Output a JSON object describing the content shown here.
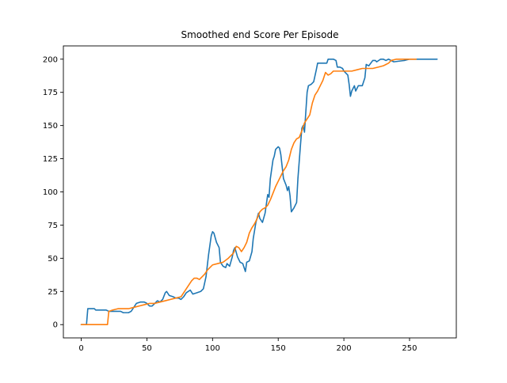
{
  "chart_data": {
    "type": "line",
    "title": "Smoothed end Score Per Episode",
    "xlabel": "",
    "ylabel": "",
    "xlim": [
      -13.6,
      285.6
    ],
    "ylim": [
      -10,
      210
    ],
    "xticks": [
      0,
      50,
      100,
      150,
      200,
      250
    ],
    "yticks": [
      0,
      25,
      50,
      75,
      100,
      125,
      150,
      175,
      200
    ],
    "grid": false,
    "series": [
      {
        "color": "#1f77b4",
        "points": [
          [
            0,
            0
          ],
          [
            4,
            0
          ],
          [
            5,
            12
          ],
          [
            8,
            12
          ],
          [
            10,
            12
          ],
          [
            11,
            11
          ],
          [
            14,
            11
          ],
          [
            16,
            11
          ],
          [
            19,
            11
          ],
          [
            21,
            10
          ],
          [
            25,
            10
          ],
          [
            30,
            10
          ],
          [
            32,
            9
          ],
          [
            36,
            9
          ],
          [
            38,
            10
          ],
          [
            40,
            13
          ],
          [
            42,
            16
          ],
          [
            45,
            17
          ],
          [
            48,
            17
          ],
          [
            50,
            16
          ],
          [
            52,
            14
          ],
          [
            54,
            14
          ],
          [
            56,
            16
          ],
          [
            58,
            18
          ],
          [
            60,
            17
          ],
          [
            62,
            19
          ],
          [
            64,
            24
          ],
          [
            65,
            25
          ],
          [
            67,
            22
          ],
          [
            70,
            21
          ],
          [
            72,
            20
          ],
          [
            74,
            20
          ],
          [
            76,
            19
          ],
          [
            78,
            21
          ],
          [
            80,
            24
          ],
          [
            83,
            26
          ],
          [
            85,
            23
          ],
          [
            88,
            24
          ],
          [
            91,
            25
          ],
          [
            93,
            27
          ],
          [
            95,
            36
          ],
          [
            97,
            53
          ],
          [
            99,
            67
          ],
          [
            100,
            70
          ],
          [
            101,
            69
          ],
          [
            103,
            62
          ],
          [
            105,
            58
          ],
          [
            106,
            47
          ],
          [
            108,
            44
          ],
          [
            110,
            43
          ],
          [
            111,
            46
          ],
          [
            113,
            44
          ],
          [
            115,
            51
          ],
          [
            116,
            56
          ],
          [
            117,
            58
          ],
          [
            119,
            51
          ],
          [
            121,
            47
          ],
          [
            123,
            46
          ],
          [
            125,
            40
          ],
          [
            126,
            47
          ],
          [
            128,
            48
          ],
          [
            130,
            55
          ],
          [
            131,
            65
          ],
          [
            133,
            77
          ],
          [
            135,
            84
          ],
          [
            136,
            80
          ],
          [
            138,
            77
          ],
          [
            140,
            84
          ],
          [
            141,
            91
          ],
          [
            142,
            98
          ],
          [
            143,
            96
          ],
          [
            144,
            110
          ],
          [
            146,
            124
          ],
          [
            147,
            127
          ],
          [
            148,
            132
          ],
          [
            150,
            134
          ],
          [
            151,
            133
          ],
          [
            152,
            128
          ],
          [
            154,
            110
          ],
          [
            156,
            105
          ],
          [
            157,
            101
          ],
          [
            158,
            104
          ],
          [
            159,
            97
          ],
          [
            160,
            85
          ],
          [
            162,
            88
          ],
          [
            164,
            92
          ],
          [
            165,
            110
          ],
          [
            167,
            136
          ],
          [
            168,
            148
          ],
          [
            169,
            150
          ],
          [
            170,
            145
          ],
          [
            171,
            160
          ],
          [
            172,
            175
          ],
          [
            173,
            180
          ],
          [
            175,
            181
          ],
          [
            177,
            183
          ],
          [
            179,
            192
          ],
          [
            180,
            197
          ],
          [
            183,
            197
          ],
          [
            186,
            197
          ],
          [
            187,
            197
          ],
          [
            188,
            200
          ],
          [
            192,
            200
          ],
          [
            194,
            199
          ],
          [
            195,
            194
          ],
          [
            197,
            194
          ],
          [
            199,
            193
          ],
          [
            200,
            191
          ],
          [
            203,
            188
          ],
          [
            204,
            181
          ],
          [
            205,
            172
          ],
          [
            206,
            176
          ],
          [
            208,
            180
          ],
          [
            209,
            176
          ],
          [
            211,
            180
          ],
          [
            214,
            180
          ],
          [
            216,
            186
          ],
          [
            217,
            196
          ],
          [
            219,
            195
          ],
          [
            222,
            199
          ],
          [
            224,
            199
          ],
          [
            225,
            198
          ],
          [
            228,
            200
          ],
          [
            230,
            200
          ],
          [
            232,
            199
          ],
          [
            234,
            200
          ],
          [
            238,
            198
          ],
          [
            246,
            199
          ],
          [
            250,
            200
          ],
          [
            255,
            200
          ],
          [
            271,
            200
          ]
        ]
      },
      {
        "color": "#ff7f0e",
        "points": [
          [
            0,
            0
          ],
          [
            10,
            0
          ],
          [
            20,
            0
          ],
          [
            21,
            10
          ],
          [
            24,
            11
          ],
          [
            28,
            12
          ],
          [
            32,
            12
          ],
          [
            36,
            12
          ],
          [
            40,
            13
          ],
          [
            44,
            14
          ],
          [
            48,
            15
          ],
          [
            52,
            16
          ],
          [
            56,
            16
          ],
          [
            60,
            17
          ],
          [
            64,
            18
          ],
          [
            68,
            19
          ],
          [
            72,
            20
          ],
          [
            76,
            21
          ],
          [
            80,
            27
          ],
          [
            84,
            33
          ],
          [
            86,
            35
          ],
          [
            88,
            35
          ],
          [
            90,
            34
          ],
          [
            92,
            36
          ],
          [
            94,
            38
          ],
          [
            96,
            41
          ],
          [
            98,
            43
          ],
          [
            100,
            45
          ],
          [
            104,
            46
          ],
          [
            108,
            47
          ],
          [
            112,
            50
          ],
          [
            116,
            54
          ],
          [
            118,
            59
          ],
          [
            120,
            58
          ],
          [
            122,
            55
          ],
          [
            124,
            58
          ],
          [
            126,
            62
          ],
          [
            128,
            69
          ],
          [
            130,
            73
          ],
          [
            132,
            76
          ],
          [
            134,
            80
          ],
          [
            136,
            85
          ],
          [
            138,
            87
          ],
          [
            140,
            88
          ],
          [
            142,
            90
          ],
          [
            144,
            94
          ],
          [
            146,
            99
          ],
          [
            148,
            104
          ],
          [
            150,
            108
          ],
          [
            152,
            112
          ],
          [
            154,
            116
          ],
          [
            156,
            119
          ],
          [
            158,
            124
          ],
          [
            160,
            132
          ],
          [
            162,
            137
          ],
          [
            164,
            140
          ],
          [
            166,
            141
          ],
          [
            168,
            146
          ],
          [
            170,
            152
          ],
          [
            172,
            155
          ],
          [
            174,
            158
          ],
          [
            176,
            167
          ],
          [
            178,
            173
          ],
          [
            180,
            176
          ],
          [
            182,
            180
          ],
          [
            184,
            184
          ],
          [
            186,
            190
          ],
          [
            188,
            188
          ],
          [
            190,
            189
          ],
          [
            192,
            191
          ],
          [
            194,
            191
          ],
          [
            198,
            191
          ],
          [
            202,
            191
          ],
          [
            206,
            191
          ],
          [
            210,
            192
          ],
          [
            214,
            193
          ],
          [
            218,
            193
          ],
          [
            222,
            193
          ],
          [
            226,
            194
          ],
          [
            230,
            195
          ],
          [
            232,
            196
          ],
          [
            234,
            197
          ],
          [
            236,
            199
          ],
          [
            240,
            200
          ],
          [
            250,
            200
          ],
          [
            255,
            200
          ]
        ]
      }
    ]
  }
}
